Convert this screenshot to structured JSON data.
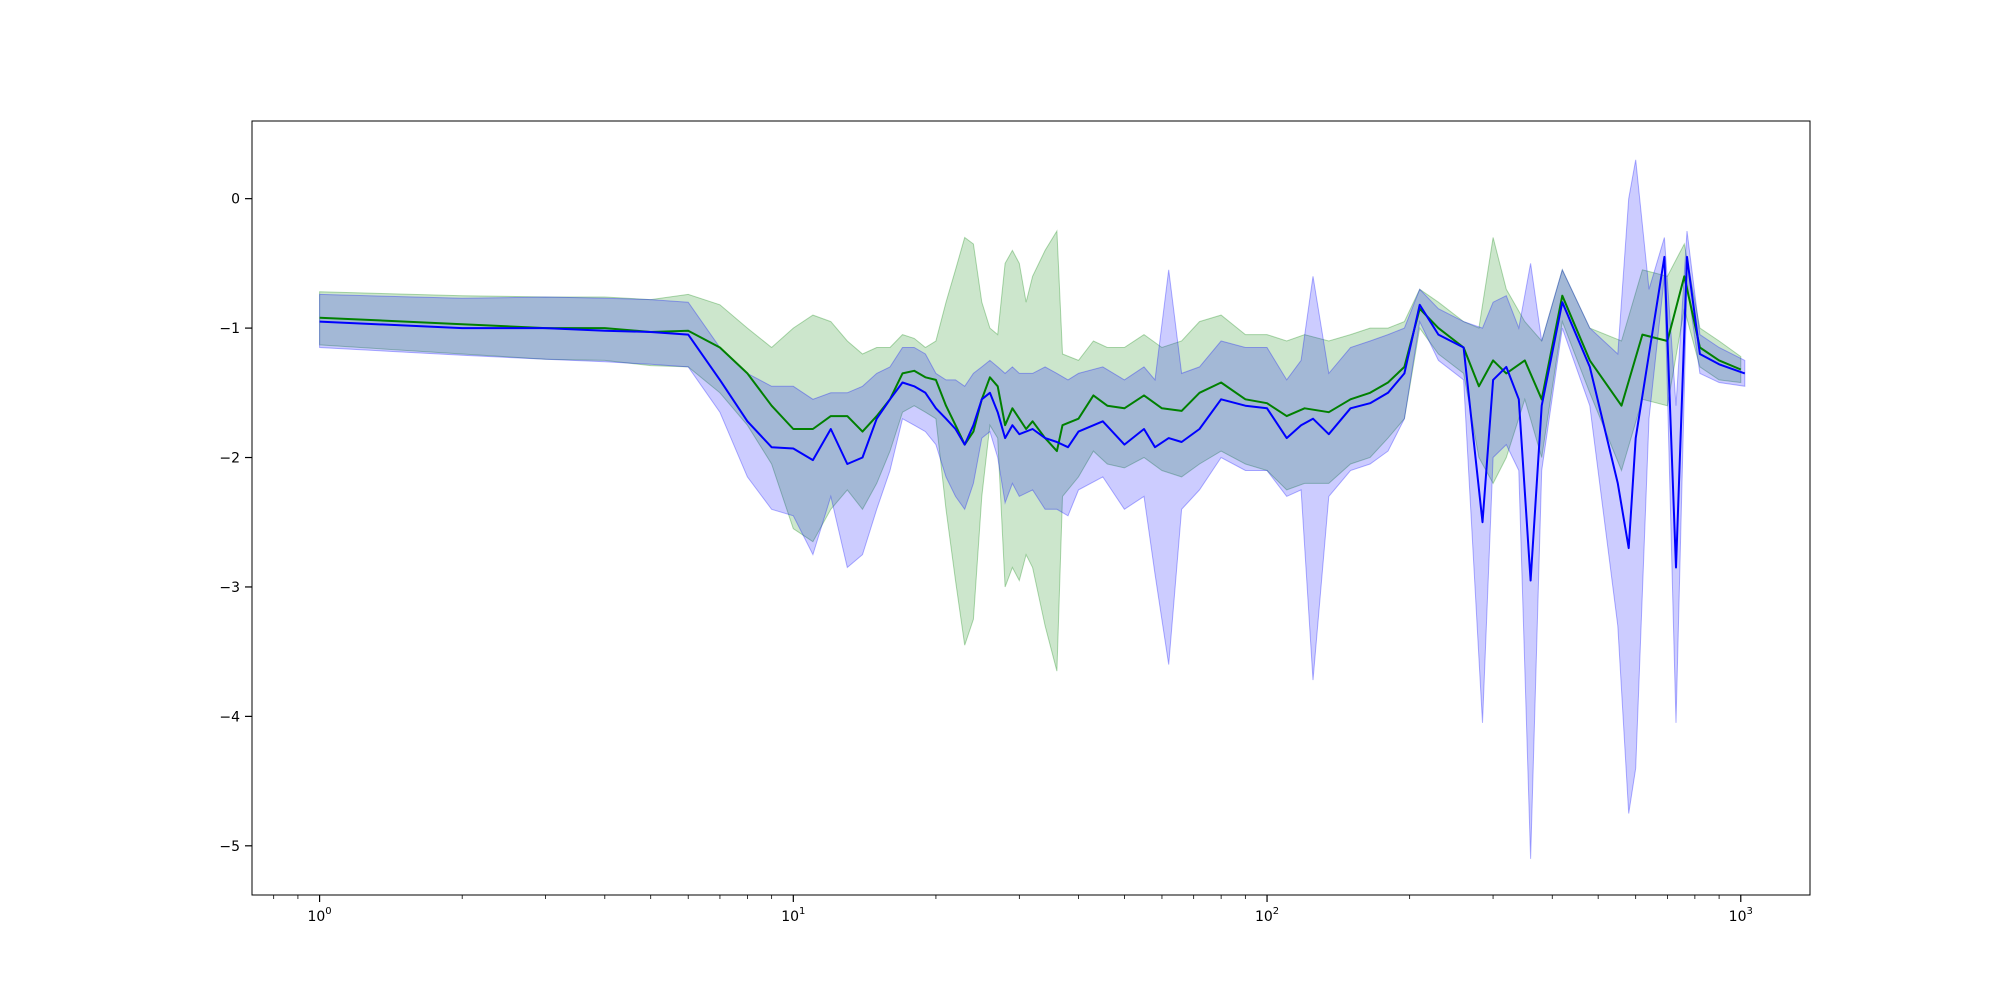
{
  "chart_data": {
    "type": "line",
    "title": "",
    "xlabel": "",
    "ylabel": "",
    "xscale": "log",
    "xlim": [
      0.72,
      1400
    ],
    "ylim": [
      -5.38,
      0.6
    ],
    "grid": false,
    "legend": "none",
    "x_ticks": [
      {
        "value": 1,
        "base": "10",
        "exp": "0"
      },
      {
        "value": 10,
        "base": "10",
        "exp": "1"
      },
      {
        "value": 100,
        "base": "10",
        "exp": "2"
      },
      {
        "value": 1000,
        "base": "10",
        "exp": "3"
      }
    ],
    "y_ticks": [
      {
        "value": 0,
        "label": "0"
      },
      {
        "value": -1,
        "label": "−1"
      },
      {
        "value": -2,
        "label": "−2"
      },
      {
        "value": -3,
        "label": "−3"
      },
      {
        "value": -4,
        "label": "−4"
      },
      {
        "value": -5,
        "label": "−5"
      }
    ],
    "series": [
      {
        "color": "#008000",
        "band_color": "#008000",
        "band_opacity": 0.2,
        "points": [
          [
            1,
            -0.92,
            -0.72,
            -1.13
          ],
          [
            2,
            -0.97,
            -0.75,
            -1.2
          ],
          [
            3,
            -1.0,
            -0.76,
            -1.24
          ],
          [
            4,
            -1.0,
            -0.76,
            -1.25
          ],
          [
            5,
            -1.03,
            -0.78,
            -1.29
          ],
          [
            6,
            -1.02,
            -0.74,
            -1.3
          ],
          [
            7,
            -1.15,
            -0.82,
            -1.5
          ],
          [
            8,
            -1.35,
            -1.0,
            -1.75
          ],
          [
            9,
            -1.6,
            -1.15,
            -2.05
          ],
          [
            10,
            -1.78,
            -1.0,
            -2.55
          ],
          [
            11,
            -1.78,
            -0.9,
            -2.65
          ],
          [
            12,
            -1.68,
            -0.95,
            -2.4
          ],
          [
            13,
            -1.68,
            -1.1,
            -2.25
          ],
          [
            14,
            -1.8,
            -1.2,
            -2.4
          ],
          [
            15,
            -1.68,
            -1.15,
            -2.2
          ],
          [
            16,
            -1.55,
            -1.15,
            -1.95
          ],
          [
            17,
            -1.35,
            -1.05,
            -1.65
          ],
          [
            18,
            -1.33,
            -1.08,
            -1.6
          ],
          [
            19,
            -1.38,
            -1.15,
            -1.65
          ],
          [
            20,
            -1.4,
            -1.1,
            -1.7
          ],
          [
            21,
            -1.6,
            -0.8,
            -2.4
          ],
          [
            22,
            -1.75,
            -0.55,
            -2.95
          ],
          [
            23,
            -1.9,
            -0.3,
            -3.45
          ],
          [
            24,
            -1.8,
            -0.35,
            -3.25
          ],
          [
            25,
            -1.55,
            -0.8,
            -2.3
          ],
          [
            26,
            -1.38,
            -1.0,
            -1.75
          ],
          [
            27,
            -1.45,
            -1.05,
            -1.85
          ],
          [
            28,
            -1.75,
            -0.5,
            -3.0
          ],
          [
            29,
            -1.62,
            -0.4,
            -2.85
          ],
          [
            30,
            -1.7,
            -0.5,
            -2.95
          ],
          [
            31,
            -1.78,
            -0.8,
            -2.75
          ],
          [
            32,
            -1.72,
            -0.6,
            -2.85
          ],
          [
            34,
            -1.85,
            -0.4,
            -3.3
          ],
          [
            36,
            -1.95,
            -0.25,
            -3.65
          ],
          [
            37,
            -1.75,
            -1.2,
            -2.3
          ],
          [
            40,
            -1.7,
            -1.25,
            -2.15
          ],
          [
            43,
            -1.52,
            -1.1,
            -1.95
          ],
          [
            46,
            -1.6,
            -1.15,
            -2.05
          ],
          [
            50,
            -1.62,
            -1.15,
            -2.08
          ],
          [
            55,
            -1.52,
            -1.05,
            -2.0
          ],
          [
            60,
            -1.62,
            -1.15,
            -2.1
          ],
          [
            66,
            -1.64,
            -1.1,
            -2.15
          ],
          [
            72,
            -1.5,
            -0.95,
            -2.05
          ],
          [
            80,
            -1.42,
            -0.9,
            -1.95
          ],
          [
            90,
            -1.55,
            -1.05,
            -2.05
          ],
          [
            100,
            -1.58,
            -1.05,
            -2.1
          ],
          [
            110,
            -1.68,
            -1.1,
            -2.25
          ],
          [
            120,
            -1.62,
            -1.05,
            -2.2
          ],
          [
            135,
            -1.65,
            -1.1,
            -2.2
          ],
          [
            150,
            -1.55,
            -1.05,
            -2.05
          ],
          [
            165,
            -1.5,
            -1.0,
            -2.0
          ],
          [
            180,
            -1.42,
            -1.0,
            -1.85
          ],
          [
            195,
            -1.3,
            -0.95,
            -1.7
          ],
          [
            210,
            -0.85,
            -0.7,
            -1.0
          ],
          [
            230,
            -1.0,
            -0.8,
            -1.2
          ],
          [
            260,
            -1.15,
            -0.95,
            -1.35
          ],
          [
            280,
            -1.45,
            -1.0,
            -2.0
          ],
          [
            300,
            -1.25,
            -0.3,
            -2.2
          ],
          [
            320,
            -1.35,
            -0.7,
            -2.0
          ],
          [
            350,
            -1.25,
            -0.95,
            -1.55
          ],
          [
            380,
            -1.55,
            -1.1,
            -2.0
          ],
          [
            420,
            -0.75,
            -0.55,
            -0.95
          ],
          [
            480,
            -1.25,
            -1.0,
            -1.5
          ],
          [
            560,
            -1.6,
            -1.1,
            -2.1
          ],
          [
            620,
            -1.05,
            -0.55,
            -1.55
          ],
          [
            700,
            -1.1,
            -0.6,
            -1.6
          ],
          [
            760,
            -0.6,
            -0.35,
            -0.85
          ],
          [
            820,
            -1.15,
            -1.0,
            -1.3
          ],
          [
            900,
            -1.25,
            -1.1,
            -1.4
          ],
          [
            1000,
            -1.32,
            -1.22,
            -1.42
          ]
        ]
      },
      {
        "color": "#0000ff",
        "band_color": "#0000ff",
        "band_opacity": 0.2,
        "points": [
          [
            1,
            -0.95,
            -0.74,
            -1.15
          ],
          [
            2,
            -1.0,
            -0.77,
            -1.21
          ],
          [
            3,
            -1.0,
            -0.76,
            -1.24
          ],
          [
            4,
            -1.02,
            -0.77,
            -1.26
          ],
          [
            5,
            -1.03,
            -0.78,
            -1.28
          ],
          [
            6,
            -1.05,
            -0.8,
            -1.3
          ],
          [
            7,
            -1.4,
            -1.15,
            -1.65
          ],
          [
            8,
            -1.72,
            -1.35,
            -2.15
          ],
          [
            9,
            -1.92,
            -1.45,
            -2.4
          ],
          [
            10,
            -1.93,
            -1.45,
            -2.45
          ],
          [
            11,
            -2.02,
            -1.55,
            -2.75
          ],
          [
            12,
            -1.78,
            -1.5,
            -2.3
          ],
          [
            13,
            -2.05,
            -1.5,
            -2.85
          ],
          [
            14,
            -2.0,
            -1.45,
            -2.75
          ],
          [
            15,
            -1.7,
            -1.35,
            -2.4
          ],
          [
            16,
            -1.55,
            -1.3,
            -2.1
          ],
          [
            17,
            -1.42,
            -1.15,
            -1.7
          ],
          [
            18,
            -1.45,
            -1.15,
            -1.75
          ],
          [
            19,
            -1.5,
            -1.2,
            -1.8
          ],
          [
            20,
            -1.62,
            -1.35,
            -1.9
          ],
          [
            21,
            -1.7,
            -1.4,
            -2.15
          ],
          [
            22,
            -1.78,
            -1.4,
            -2.3
          ],
          [
            23,
            -1.9,
            -1.45,
            -2.4
          ],
          [
            24,
            -1.75,
            -1.35,
            -2.2
          ],
          [
            25,
            -1.55,
            -1.3,
            -1.85
          ],
          [
            26,
            -1.5,
            -1.25,
            -1.8
          ],
          [
            27,
            -1.65,
            -1.3,
            -2.0
          ],
          [
            28,
            -1.85,
            -1.35,
            -2.35
          ],
          [
            29,
            -1.75,
            -1.3,
            -2.2
          ],
          [
            30,
            -1.82,
            -1.35,
            -2.3
          ],
          [
            32,
            -1.78,
            -1.35,
            -2.25
          ],
          [
            34,
            -1.85,
            -1.3,
            -2.4
          ],
          [
            36,
            -1.88,
            -1.35,
            -2.4
          ],
          [
            38,
            -1.92,
            -1.4,
            -2.45
          ],
          [
            40,
            -1.8,
            -1.35,
            -2.25
          ],
          [
            45,
            -1.72,
            -1.3,
            -2.15
          ],
          [
            50,
            -1.9,
            -1.4,
            -2.4
          ],
          [
            55,
            -1.78,
            -1.3,
            -2.3
          ],
          [
            58,
            -1.92,
            -1.4,
            -2.9
          ],
          [
            62,
            -1.85,
            -0.55,
            -3.6
          ],
          [
            66,
            -1.88,
            -1.35,
            -2.4
          ],
          [
            72,
            -1.78,
            -1.3,
            -2.25
          ],
          [
            80,
            -1.55,
            -1.1,
            -2.0
          ],
          [
            90,
            -1.6,
            -1.15,
            -2.1
          ],
          [
            100,
            -1.62,
            -1.15,
            -2.1
          ],
          [
            110,
            -1.85,
            -1.4,
            -2.3
          ],
          [
            118,
            -1.75,
            -1.25,
            -2.25
          ],
          [
            125,
            -1.7,
            -0.6,
            -3.72
          ],
          [
            135,
            -1.82,
            -1.35,
            -2.3
          ],
          [
            150,
            -1.62,
            -1.15,
            -2.1
          ],
          [
            165,
            -1.58,
            -1.1,
            -2.05
          ],
          [
            180,
            -1.5,
            -1.05,
            -1.95
          ],
          [
            195,
            -1.35,
            -1.0,
            -1.7
          ],
          [
            210,
            -0.82,
            -0.7,
            -0.95
          ],
          [
            230,
            -1.05,
            -0.85,
            -1.25
          ],
          [
            260,
            -1.15,
            -0.95,
            -1.4
          ],
          [
            285,
            -2.5,
            -1.0,
            -4.05
          ],
          [
            300,
            -1.4,
            -0.8,
            -2.0
          ],
          [
            320,
            -1.3,
            -0.75,
            -1.9
          ],
          [
            340,
            -1.55,
            -1.0,
            -2.1
          ],
          [
            360,
            -2.95,
            -0.5,
            -5.1
          ],
          [
            380,
            -1.6,
            -1.1,
            -2.1
          ],
          [
            420,
            -0.8,
            -0.55,
            -1.0
          ],
          [
            480,
            -1.3,
            -1.0,
            -1.6
          ],
          [
            550,
            -2.2,
            -1.2,
            -3.3
          ],
          [
            580,
            -2.7,
            0.0,
            -4.75
          ],
          [
            600,
            -1.85,
            0.3,
            -4.4
          ],
          [
            640,
            -1.2,
            -0.7,
            -1.7
          ],
          [
            690,
            -0.45,
            -0.3,
            -0.6
          ],
          [
            730,
            -2.85,
            -1.6,
            -4.05
          ],
          [
            770,
            -0.45,
            -0.25,
            -0.65
          ],
          [
            820,
            -1.2,
            -1.05,
            -1.35
          ],
          [
            900,
            -1.28,
            -1.15,
            -1.42
          ],
          [
            1020,
            -1.35,
            -1.25,
            -1.45
          ]
        ]
      }
    ]
  }
}
